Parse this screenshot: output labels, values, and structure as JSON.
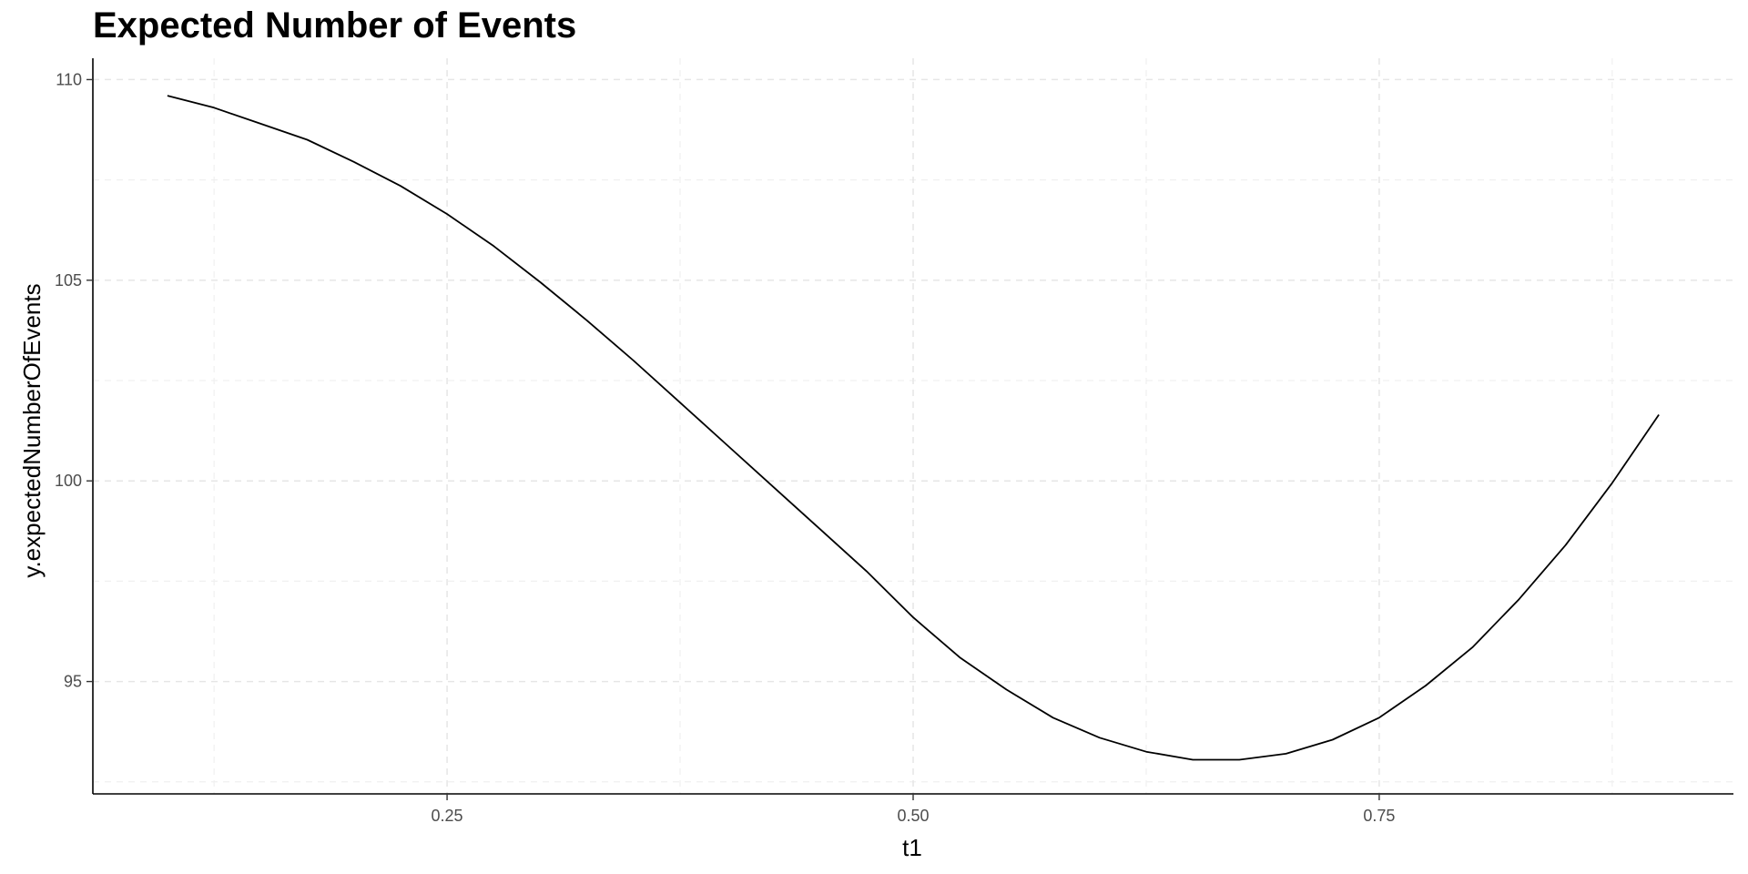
{
  "chart_data": {
    "type": "line",
    "title": "Expected Number of Events",
    "xlabel": "t1",
    "ylabel": "y.expectedNumberOfEvents",
    "xlim": [
      0.06,
      0.94
    ],
    "ylim": [
      92.2,
      110.35
    ],
    "x_ticks": [
      0.25,
      0.5,
      0.75
    ],
    "x_tick_labels": [
      "0.25",
      "0.50",
      "0.75"
    ],
    "y_ticks": [
      95,
      100,
      105,
      110
    ],
    "y_tick_labels": [
      "95",
      "100",
      "105",
      "110"
    ],
    "grid": true,
    "grid_style": "dashed",
    "line_color": "#000000",
    "series": [
      {
        "x": [
          0.1,
          0.125,
          0.15,
          0.175,
          0.2,
          0.225,
          0.25,
          0.275,
          0.3,
          0.325,
          0.35,
          0.375,
          0.4,
          0.425,
          0.45,
          0.475,
          0.5,
          0.525,
          0.55,
          0.575,
          0.6,
          0.625,
          0.65,
          0.675,
          0.7,
          0.725,
          0.75,
          0.775,
          0.8,
          0.825,
          0.85,
          0.875,
          0.9
        ],
        "y": [
          109.6,
          109.3,
          108.9,
          108.5,
          107.95,
          107.35,
          106.65,
          105.85,
          104.95,
          104.0,
          103.0,
          101.95,
          100.9,
          99.85,
          98.8,
          97.75,
          96.6,
          95.6,
          94.8,
          94.1,
          93.6,
          93.25,
          93.05,
          93.05,
          93.2,
          93.55,
          94.1,
          94.9,
          95.85,
          97.05,
          98.4,
          99.95,
          101.65
        ]
      }
    ]
  }
}
